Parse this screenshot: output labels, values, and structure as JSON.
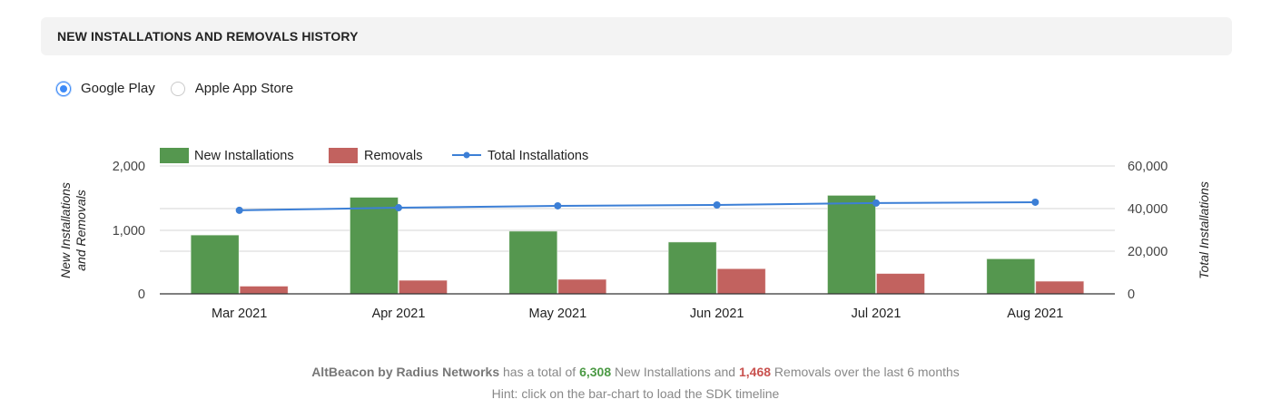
{
  "header": {
    "title": "NEW INSTALLATIONS AND REMOVALS HISTORY"
  },
  "store_selector": {
    "options": [
      {
        "label": "Google Play",
        "checked": true
      },
      {
        "label": "Apple App Store",
        "checked": false
      }
    ]
  },
  "colors": {
    "new_installations": "#55974f",
    "removals": "#c2625f",
    "total_installations": "#3c7fd6",
    "radio_accent": "#3d8af7"
  },
  "chart_data": {
    "type": "bar",
    "title": "",
    "categories": [
      "Mar 2021",
      "Apr 2021",
      "May 2021",
      "Jun 2021",
      "Jul 2021",
      "Aug 2021"
    ],
    "series": [
      {
        "name": "New Installations",
        "type": "bar",
        "axis": "left",
        "values": [
          920,
          1510,
          980,
          810,
          1540,
          548
        ]
      },
      {
        "name": "Removals",
        "type": "bar",
        "axis": "left",
        "values": [
          120,
          212,
          227,
          393,
          318,
          198
        ]
      },
      {
        "name": "Total Installations",
        "type": "line",
        "axis": "right",
        "values": [
          39200,
          40400,
          41300,
          41700,
          42600,
          43000
        ]
      }
    ],
    "ylabel": "New Installations and Removals",
    "y2label": "Total Installations",
    "ylim": [
      0,
      2000
    ],
    "y2lim": [
      0,
      60000
    ],
    "yticks": [
      "0",
      "1,000",
      "2,000"
    ],
    "y2ticks": [
      "0",
      "20,000",
      "40,000",
      "60,000"
    ],
    "grid": true,
    "legend_position": "top-left"
  },
  "legend": {
    "items": [
      "New Installations",
      "Removals",
      "Total Installations"
    ]
  },
  "axes": {
    "left_label_line1": "New Installations",
    "left_label_line2": "and Removals",
    "right_label": "Total Installations",
    "left_ticks": [
      "0",
      "1,000",
      "2,000"
    ],
    "right_ticks": [
      "0",
      "20,000",
      "40,000",
      "60,000"
    ],
    "x_ticks": [
      "Mar 2021",
      "Apr 2021",
      "May 2021",
      "Jun 2021",
      "Jul 2021",
      "Aug 2021"
    ]
  },
  "summary": {
    "sdk_name": "AltBeacon by Radius Networks",
    "text_1": " has a total of ",
    "new_installations_total": "6,308",
    "text_2": " New Installations and ",
    "removals_total": "1,468",
    "text_3": " Removals over the last 6 months",
    "hint": "Hint: click on the bar-chart to load the SDK timeline"
  }
}
